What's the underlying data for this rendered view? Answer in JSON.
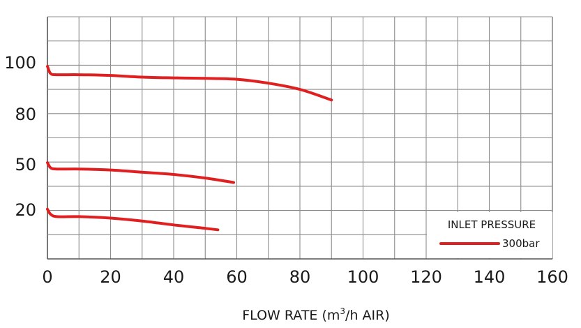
{
  "chart_data": {
    "type": "line",
    "xlabel_main": "FLOW RATE (m",
    "xlabel_sup": "3",
    "xlabel_tail": "/h AIR)",
    "xlim": [
      0,
      160
    ],
    "x_ticks": [
      0,
      20,
      40,
      60,
      80,
      100,
      120,
      140,
      160
    ],
    "y_tick_labels": [
      "100",
      "80",
      "50",
      "20"
    ],
    "grid": true,
    "legend_title": "INLET PRESSURE",
    "legend_placement": "bottom-right",
    "series": [
      {
        "name": "300bar",
        "color": "#e02020",
        "curves": [
          {
            "level": "100",
            "x": [
              0,
              1,
              3,
              10,
              20,
              30,
              40,
              50,
              60,
              70,
              80,
              90
            ],
            "y": [
              100,
              97,
              96.5,
              96.5,
              96.2,
              95.5,
              95.2,
              95.0,
              94.6,
              93.0,
              90.4,
              86.0
            ]
          },
          {
            "level": "50",
            "x": [
              0,
              1,
              3,
              10,
              20,
              30,
              40,
              50,
              59
            ],
            "y": [
              50,
              46.8,
              46.0,
              46.0,
              45.4,
              44.0,
              42.6,
              40.4,
              37.6
            ]
          },
          {
            "level": "20",
            "x": [
              0,
              1,
              3,
              10,
              20,
              30,
              40,
              50,
              54
            ],
            "y": [
              21,
              18.6,
              17.6,
              17.6,
              17.0,
              15.8,
              14.2,
              12.8,
              12.2
            ]
          }
        ]
      }
    ]
  }
}
